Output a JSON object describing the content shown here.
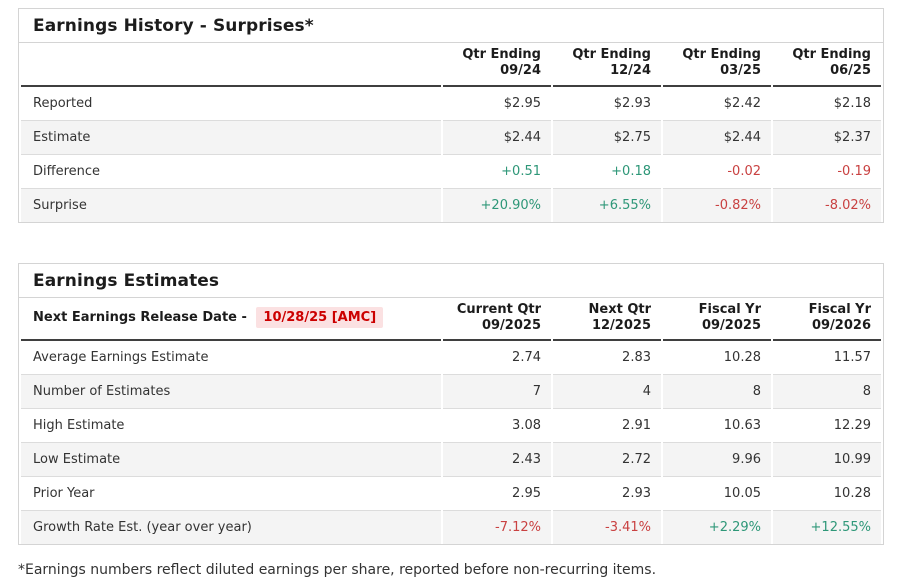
{
  "colors": {
    "positive": "#2e9778",
    "negative": "#c94141",
    "release_date_text": "#cc0000",
    "release_date_bg": "#fbe1e2",
    "row_stripe": "#f4f4f4",
    "border_light": "#d4d4d4",
    "header_underline": "#3f3f3f"
  },
  "history_table": {
    "title": "Earnings History - Surprises*",
    "columns": [
      {
        "line1": "Qtr Ending",
        "line2": "09/24"
      },
      {
        "line1": "Qtr Ending",
        "line2": "12/24"
      },
      {
        "line1": "Qtr Ending",
        "line2": "03/25"
      },
      {
        "line1": "Qtr Ending",
        "line2": "06/25"
      }
    ],
    "rows": [
      {
        "label": "Reported",
        "values": [
          "$2.95",
          "$2.93",
          "$2.42",
          "$2.18"
        ]
      },
      {
        "label": "Estimate",
        "values": [
          "$2.44",
          "$2.75",
          "$2.44",
          "$2.37"
        ]
      },
      {
        "label": "Difference",
        "values": [
          "+0.51",
          "+0.18",
          "-0.02",
          "-0.19"
        ]
      },
      {
        "label": "Surprise",
        "values": [
          "+20.90%",
          "+6.55%",
          "-0.82%",
          "-8.02%"
        ]
      }
    ]
  },
  "estimates_table": {
    "title": "Earnings Estimates",
    "release_label": "Next Earnings Release Date -",
    "release_date": "10/28/25 [AMC]",
    "columns": [
      {
        "line1": "Current Qtr",
        "line2": "09/2025"
      },
      {
        "line1": "Next Qtr",
        "line2": "12/2025"
      },
      {
        "line1": "Fiscal Yr",
        "line2": "09/2025"
      },
      {
        "line1": "Fiscal Yr",
        "line2": "09/2026"
      }
    ],
    "rows": [
      {
        "label": "Average Earnings Estimate",
        "values": [
          "2.74",
          "2.83",
          "10.28",
          "11.57"
        ]
      },
      {
        "label": "Number of Estimates",
        "values": [
          "7",
          "4",
          "8",
          "8"
        ]
      },
      {
        "label": "High Estimate",
        "values": [
          "3.08",
          "2.91",
          "10.63",
          "12.29"
        ]
      },
      {
        "label": "Low Estimate",
        "values": [
          "2.43",
          "2.72",
          "9.96",
          "10.99"
        ]
      },
      {
        "label": "Prior Year",
        "values": [
          "2.95",
          "2.93",
          "10.05",
          "10.28"
        ]
      },
      {
        "label": "Growth Rate Est. (year over year)",
        "values": [
          "-7.12%",
          "-3.41%",
          "+2.29%",
          "+12.55%"
        ]
      }
    ]
  },
  "page": {
    "footnote": "*Earnings numbers reflect diluted earnings per share, reported before non-recurring items."
  }
}
